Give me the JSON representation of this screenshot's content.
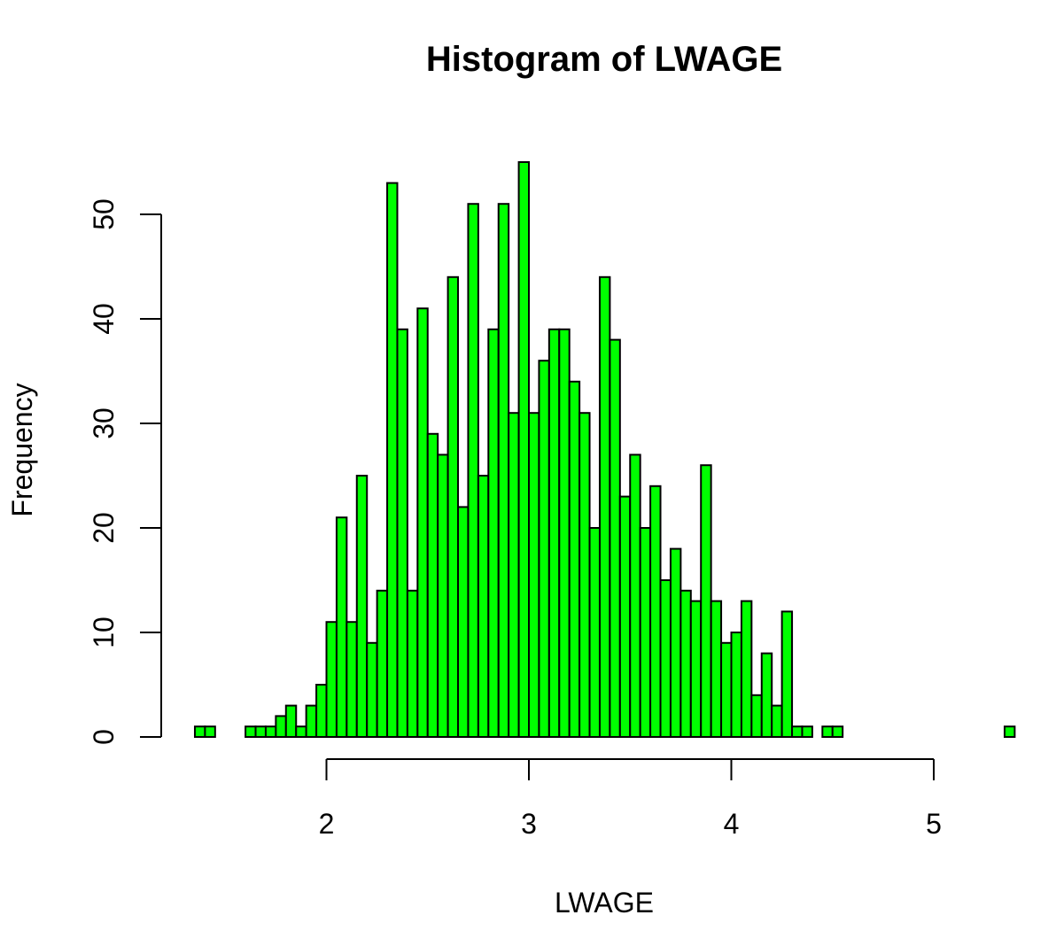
{
  "chart_data": {
    "type": "bar",
    "title": "Histogram of LWAGE",
    "xlabel": "LWAGE",
    "ylabel": "Frequency",
    "bar_color": "#00ff00",
    "edge_color": "#000000",
    "bin_width": 0.05,
    "bin_start": 1.35,
    "x_ticks": [
      2,
      3,
      4,
      5
    ],
    "y_ticks": [
      0,
      10,
      20,
      30,
      40,
      50
    ],
    "xlim": [
      1.35,
      5.4
    ],
    "ylim": [
      0,
      55
    ],
    "counts": [
      1,
      1,
      0,
      0,
      0,
      1,
      1,
      1,
      2,
      3,
      1,
      3,
      5,
      11,
      21,
      11,
      25,
      9,
      14,
      53,
      39,
      14,
      41,
      29,
      27,
      44,
      22,
      51,
      25,
      39,
      51,
      31,
      55,
      31,
      36,
      39,
      39,
      34,
      31,
      20,
      44,
      38,
      23,
      27,
      20,
      24,
      15,
      18,
      14,
      13,
      26,
      13,
      9,
      10,
      13,
      4,
      8,
      3,
      12,
      1,
      1,
      0,
      1,
      1,
      0,
      0,
      0,
      0,
      0,
      0,
      0,
      0,
      0,
      0,
      0,
      0,
      0,
      0,
      0,
      0,
      1
    ]
  }
}
